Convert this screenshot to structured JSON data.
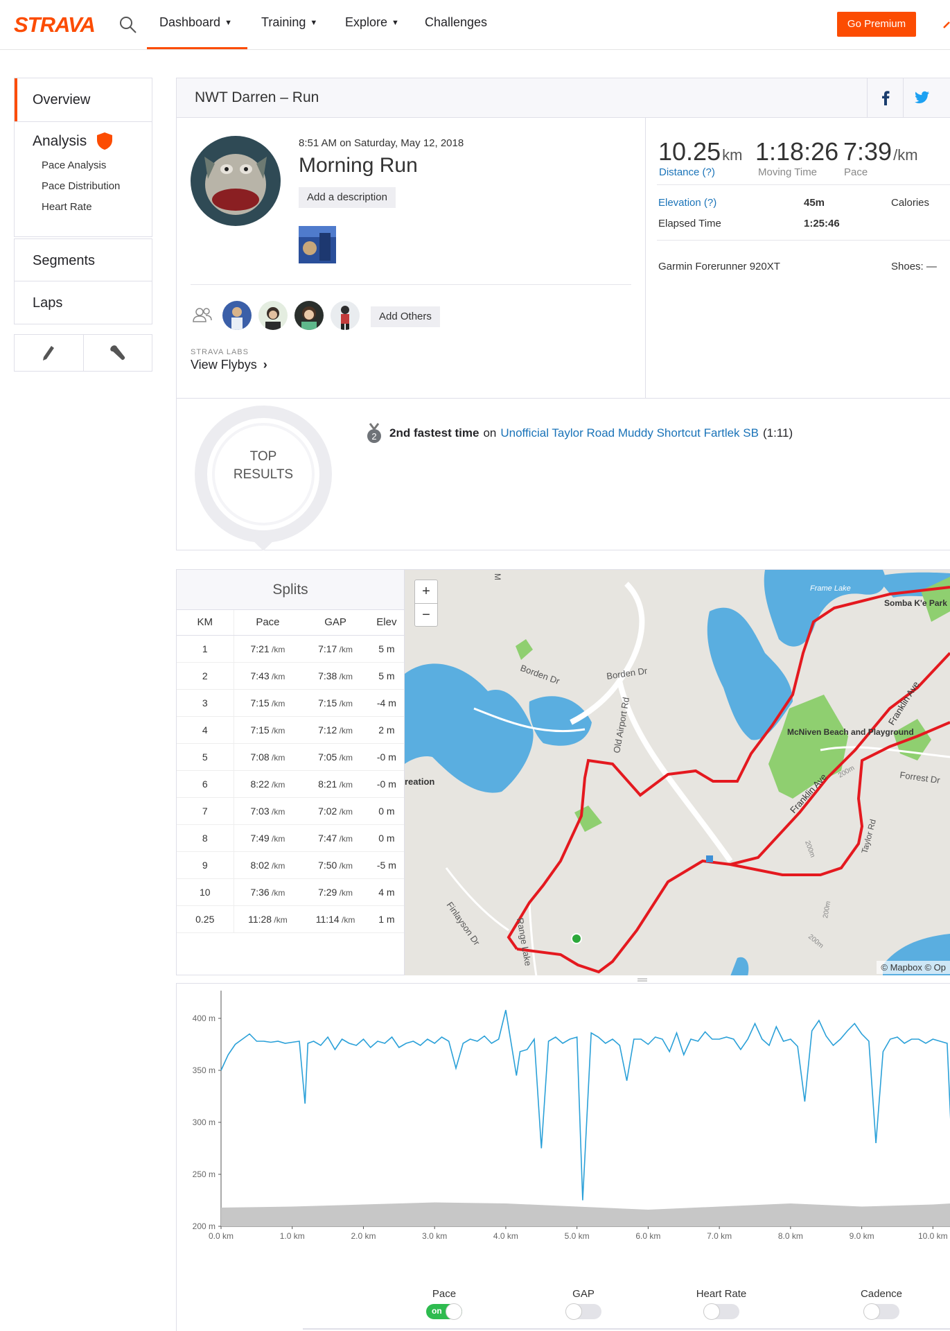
{
  "nav": {
    "logo": "STRAVA",
    "items": [
      {
        "label": "Dashboard",
        "chevron": true
      },
      {
        "label": "Training",
        "chevron": true
      },
      {
        "label": "Explore",
        "chevron": true
      },
      {
        "label": "Challenges",
        "chevron": false
      }
    ],
    "premium": "Go Premium"
  },
  "sidebar": {
    "overview": "Overview",
    "analysis": "Analysis",
    "analysis_items": [
      "Pace Analysis",
      "Pace Distribution",
      "Heart Rate"
    ],
    "segments": "Segments",
    "laps": "Laps"
  },
  "activity": {
    "header_title": "NWT Darren – Run",
    "datetime": "8:51 AM on Saturday, May 12, 2018",
    "name": "Morning Run",
    "add_description": "Add a description",
    "add_others": "Add Others",
    "labs_label": "STRAVA LABS",
    "flybys": "View Flybys",
    "stats": {
      "distance_value": "10.25",
      "distance_unit": "km",
      "distance_label": "Distance (?)",
      "moving_time_value": "1:18:26",
      "moving_time_label": "Moving Time",
      "pace_value": "7:39",
      "pace_unit": "/km",
      "pace_label": "Pace",
      "elevation_label": "Elevation (?)",
      "elevation_value": "45m",
      "calories_label": "Calories",
      "elapsed_label": "Elapsed Time",
      "elapsed_value": "1:25:46",
      "device": "Garmin Forerunner 920XT",
      "shoes": "Shoes: —"
    },
    "top_results_line1": "TOP",
    "top_results_line2": "RESULTS",
    "achievement": {
      "medal_rank": "2",
      "rank_text": "2nd fastest time",
      "on": "on",
      "segment": "Unofficial Taylor Road Muddy Shortcut Fartlek SB",
      "time": "(1:11)"
    }
  },
  "splits": {
    "title": "Splits",
    "columns": [
      "KM",
      "Pace",
      "GAP",
      "Elev"
    ],
    "rows": [
      {
        "km": "1",
        "pace": "7:21",
        "gap": "7:17",
        "elev": "5 m"
      },
      {
        "km": "2",
        "pace": "7:43",
        "gap": "7:38",
        "elev": "5 m"
      },
      {
        "km": "3",
        "pace": "7:15",
        "gap": "7:15",
        "elev": "-4 m"
      },
      {
        "km": "4",
        "pace": "7:15",
        "gap": "7:12",
        "elev": "2 m"
      },
      {
        "km": "5",
        "pace": "7:08",
        "gap": "7:05",
        "elev": "-0 m"
      },
      {
        "km": "6",
        "pace": "8:22",
        "gap": "8:21",
        "elev": "-0 m"
      },
      {
        "km": "7",
        "pace": "7:03",
        "gap": "7:02",
        "elev": "0 m"
      },
      {
        "km": "8",
        "pace": "7:49",
        "gap": "7:47",
        "elev": "0 m"
      },
      {
        "km": "9",
        "pace": "8:02",
        "gap": "7:50",
        "elev": "-5 m"
      },
      {
        "km": "10",
        "pace": "7:36",
        "gap": "7:29",
        "elev": "4 m"
      },
      {
        "km": "0.25",
        "pace": "11:28",
        "gap": "11:14",
        "elev": "1 m"
      }
    ],
    "pace_unit": "/km"
  },
  "map": {
    "labels": [
      "Borden Dr",
      "Borden Dr",
      "Old Airport Rd",
      "McNiven Beach and Playground",
      "Franklin Ave",
      "Franklin Ave",
      "Forrest Dr",
      "Frame Lake",
      "Somba K'e Park",
      "Finlayson Dr",
      "Range Lake",
      "reation",
      "200m",
      "200m",
      "200m",
      "200m",
      "Taylor Rd",
      "M"
    ],
    "attribution": "© Mapbox © Op"
  },
  "chart_data": {
    "type": "line",
    "title": "",
    "xlabel": "",
    "ylabel": "",
    "x_ticks": [
      "0.0 km",
      "1.0 km",
      "2.0 km",
      "3.0 km",
      "4.0 km",
      "5.0 km",
      "6.0 km",
      "7.0 km",
      "8.0 km",
      "9.0 km",
      "10.0 km"
    ],
    "y_ticks": [
      "200 m",
      "250 m",
      "300 m",
      "350 m",
      "400 m"
    ],
    "xlim": [
      0,
      10.25
    ],
    "ylim": [
      200,
      420
    ],
    "series": [
      {
        "name": "Pace",
        "color": "#2aa0d8",
        "x": [
          0,
          0.1,
          0.2,
          0.3,
          0.4,
          0.5,
          0.6,
          0.7,
          0.8,
          0.9,
          1.0,
          1.1,
          1.18,
          1.22,
          1.3,
          1.4,
          1.5,
          1.6,
          1.7,
          1.8,
          1.9,
          2.0,
          2.1,
          2.2,
          2.3,
          2.4,
          2.5,
          2.6,
          2.7,
          2.8,
          2.9,
          3.0,
          3.1,
          3.2,
          3.3,
          3.4,
          3.5,
          3.6,
          3.7,
          3.8,
          3.9,
          4.0,
          4.15,
          4.2,
          4.3,
          4.4,
          4.5,
          4.6,
          4.7,
          4.8,
          4.9,
          5.0,
          5.08,
          5.2,
          5.3,
          5.4,
          5.5,
          5.6,
          5.7,
          5.8,
          5.9,
          6.0,
          6.1,
          6.2,
          6.3,
          6.4,
          6.5,
          6.6,
          6.7,
          6.8,
          6.9,
          7.0,
          7.1,
          7.2,
          7.3,
          7.4,
          7.5,
          7.6,
          7.7,
          7.8,
          7.9,
          8.0,
          8.1,
          8.2,
          8.3,
          8.4,
          8.5,
          8.6,
          8.7,
          8.8,
          8.9,
          9.0,
          9.1,
          9.2,
          9.3,
          9.4,
          9.5,
          9.6,
          9.7,
          9.8,
          9.9,
          10.0,
          10.1,
          10.2,
          10.25
        ],
        "values": [
          350,
          365,
          375,
          380,
          385,
          378,
          378,
          377,
          378,
          376,
          377,
          378,
          318,
          376,
          378,
          374,
          382,
          370,
          380,
          376,
          374,
          380,
          372,
          378,
          376,
          382,
          372,
          376,
          378,
          374,
          380,
          376,
          382,
          378,
          352,
          376,
          380,
          378,
          383,
          376,
          380,
          408,
          345,
          368,
          370,
          380,
          275,
          378,
          382,
          376,
          380,
          382,
          225,
          386,
          382,
          376,
          380,
          374,
          340,
          380,
          380,
          375,
          382,
          380,
          368,
          386,
          365,
          380,
          378,
          387,
          380,
          380,
          382,
          380,
          370,
          380,
          395,
          380,
          374,
          392,
          378,
          380,
          373,
          320,
          388,
          398,
          383,
          374,
          380,
          388,
          395,
          385,
          378,
          280,
          368,
          380,
          382,
          376,
          380,
          380,
          376,
          380,
          378,
          376,
          300
        ]
      },
      {
        "name": "Elevation",
        "color": "#c7c7c7",
        "x": [
          0,
          1,
          2,
          3,
          4,
          5,
          6,
          7,
          8,
          9,
          10,
          10.25
        ],
        "values": [
          218,
          219,
          221,
          223,
          222,
          219,
          216,
          219,
          222,
          219,
          221,
          222
        ]
      }
    ],
    "grid": false,
    "legend": "toggles-bottom"
  },
  "toggles": [
    {
      "label": "Pace",
      "on": true,
      "on_text": "on"
    },
    {
      "label": "GAP",
      "on": false
    },
    {
      "label": "Heart Rate",
      "on": false
    },
    {
      "label": "Cadence",
      "on": false
    }
  ],
  "colors": {
    "brand": "#fc4c02",
    "link": "#1a73b8",
    "route": "#e4191f",
    "water": "#5aaee0",
    "park": "#8fcf70"
  }
}
